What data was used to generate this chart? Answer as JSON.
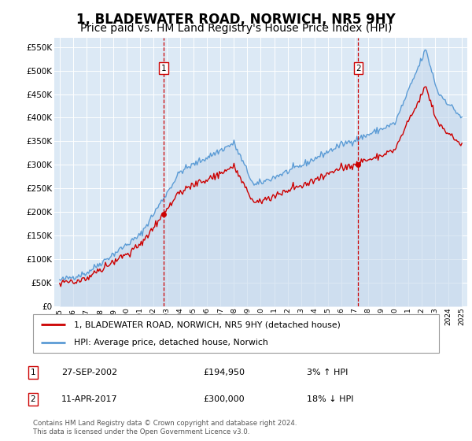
{
  "title": "1, BLADEWATER ROAD, NORWICH, NR5 9HY",
  "subtitle": "Price paid vs. HM Land Registry's House Price Index (HPI)",
  "legend_line1": "1, BLADEWATER ROAD, NORWICH, NR5 9HY (detached house)",
  "legend_line2": "HPI: Average price, detached house, Norwich",
  "annotation1_label": "1",
  "annotation1_date": "27-SEP-2002",
  "annotation1_price": "£194,950",
  "annotation1_hpi": "3% ↑ HPI",
  "annotation2_label": "2",
  "annotation2_date": "11-APR-2017",
  "annotation2_price": "£300,000",
  "annotation2_hpi": "18% ↓ HPI",
  "footnote": "Contains HM Land Registry data © Crown copyright and database right 2024.\nThis data is licensed under the Open Government Licence v3.0.",
  "sale1_year": 2002.74,
  "sale1_price": 194950,
  "sale2_year": 2017.27,
  "sale2_price": 300000,
  "line_color_red": "#cc0000",
  "line_color_blue": "#5b9bd5",
  "fill_color_blue": "#c5d8ec",
  "vline_color": "#cc0000",
  "marker_color": "#cc0000",
  "background_color": "#dce9f5",
  "ylim_min": 0,
  "ylim_max": 570000,
  "title_fontsize": 12,
  "subtitle_fontsize": 10
}
